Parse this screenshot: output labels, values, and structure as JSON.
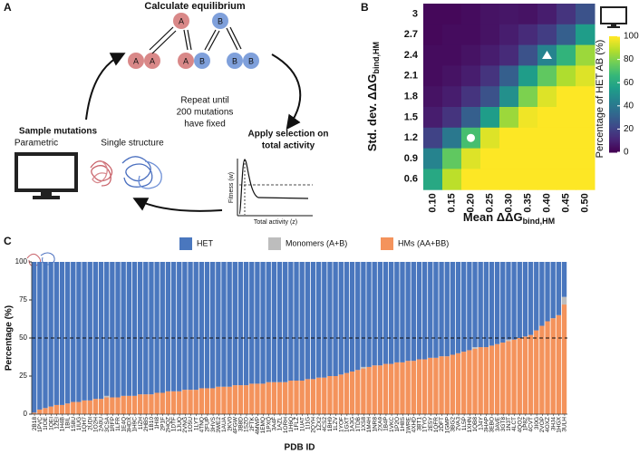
{
  "panel_labels": [
    "A",
    "B",
    "C"
  ],
  "diagram": {
    "title": "Calculate equilibrium",
    "monomer_labels": [
      "A",
      "B"
    ],
    "dimers": [
      [
        "A",
        "A"
      ],
      [
        "A",
        "B"
      ],
      [
        "B",
        "B"
      ]
    ],
    "repeat_text": [
      "Repeat until",
      "200 mutations",
      "have fixed"
    ],
    "sample_title": "Sample mutations",
    "sample_options": [
      "Parametric",
      "Single structure"
    ],
    "selection_title": [
      "Apply selection on",
      "total activity"
    ],
    "inset_y_label": "Fitness (w)",
    "inset_x_label": "Total activity (z)"
  },
  "chart_data": [
    {
      "type": "heatmap",
      "x_categories": [
        "0.10",
        "0.15",
        "0.20",
        "0.25",
        "0.30",
        "0.35",
        "0.40",
        "0.45",
        "0.50"
      ],
      "y_categories": [
        "3",
        "2.7",
        "2.4",
        "2.1",
        "1.8",
        "1.5",
        "1.2",
        "0.9",
        "0.6"
      ],
      "x_label": {
        "text": "Mean ΔΔG",
        "sub": "bind,HM"
      },
      "y_label": {
        "text": "Std. dev. ΔΔG",
        "sub": "bind,HM"
      },
      "z": [
        [
          2,
          2,
          3,
          5,
          6,
          5,
          8,
          15,
          25
        ],
        [
          2,
          3,
          3,
          5,
          8,
          12,
          18,
          30,
          55
        ],
        [
          3,
          3,
          5,
          8,
          12,
          25,
          45,
          65,
          85
        ],
        [
          3,
          5,
          8,
          15,
          30,
          55,
          75,
          88,
          95
        ],
        [
          5,
          8,
          15,
          25,
          50,
          80,
          95,
          100,
          100
        ],
        [
          8,
          15,
          30,
          55,
          85,
          98,
          100,
          100,
          100
        ],
        [
          20,
          40,
          70,
          95,
          100,
          100,
          100,
          100,
          100
        ],
        [
          45,
          75,
          95,
          100,
          100,
          100,
          100,
          100,
          100
        ],
        [
          60,
          90,
          100,
          100,
          100,
          100,
          100,
          100,
          100
        ]
      ],
      "zlim": [
        0,
        100
      ],
      "zticks": [
        0,
        20,
        40,
        60,
        80,
        100
      ],
      "colorbar_label": "Percentage of HET AB (%)",
      "colorscale": [
        "#440154",
        "#482878",
        "#3e4a89",
        "#31688e",
        "#26828e",
        "#1f9e89",
        "#35b779",
        "#6ece58",
        "#b5de2b",
        "#fde725"
      ],
      "markers": [
        {
          "x": "0.20",
          "y": "1.2",
          "shape": "circle"
        },
        {
          "x": "0.40",
          "y": "2.4",
          "shape": "triangle"
        }
      ]
    },
    {
      "type": "stacked_bar",
      "x_label": "PDB ID",
      "y_label": "Percentage (%)",
      "ylim": [
        0,
        100
      ],
      "yticks": [
        0,
        25,
        50,
        75,
        100
      ],
      "hline": 50,
      "categories": [
        "2B18",
        "1PVC",
        "1IOE",
        "1QEI",
        "1ZEI",
        "1H4B",
        "1BIL",
        "1S8U",
        "1IUG",
        "1QH7",
        "2UDI",
        "1O2H",
        "2A0U",
        "3CSA",
        "1RFP",
        "1LFR",
        "1E4Q",
        "3HDX",
        "1H9C",
        "1IZH",
        "2HB5",
        "1B10",
        "1HI8",
        "2P1F",
        "2HQZ",
        "1DTF",
        "1JUQ",
        "2VNG",
        "1O5U",
        "1LYT",
        "4TNQ",
        "2FUP",
        "3HVS",
        "3WE2",
        "1AUA",
        "2KV0",
        "4FGW",
        "3B8D",
        "1SZO",
        "2FTK",
        "4MWP",
        "1EMQ",
        "1PXQ",
        "3A4F",
        "1AZL",
        "1ORH",
        "1H6Q",
        "1FLZ",
        "1UAT",
        "1I1G",
        "2QYH",
        "1ZX2",
        "4CS2",
        "1BH9",
        "1LZV",
        "1YOF",
        "1GXT",
        "1A3G",
        "1TDB",
        "1XS8",
        "1M4H",
        "1NR8",
        "2XA9",
        "1B4P",
        "1VKC",
        "1P2O",
        "1H8S",
        "1WRE",
        "4XHD",
        "3BT1",
        "1TYO",
        "2E5Y",
        "1QFR",
        "2DFT",
        "1GMP",
        "3BG2",
        "2VA3",
        "1L5P",
        "1XHN",
        "1QB8",
        "1J4Y",
        "3HAP",
        "3EBO",
        "3AVE",
        "3GT8",
        "1N3T",
        "4LCT",
        "4QO2",
        "1P8Z",
        "4CVT",
        "3I0G",
        "2VOP",
        "4OXZ",
        "3HJ4",
        "1HGX",
        "3ULH"
      ],
      "series": [
        {
          "name": "HET",
          "color": "#4a77be",
          "values": [
            99,
            97,
            96,
            95,
            94,
            94,
            93,
            92,
            92,
            91,
            91,
            90,
            90,
            88,
            89,
            89,
            88,
            88,
            88,
            87,
            87,
            87,
            86,
            86,
            85,
            85,
            85,
            84,
            84,
            84,
            83,
            83,
            83,
            82,
            82,
            82,
            81,
            81,
            81,
            80,
            80,
            80,
            79,
            79,
            79,
            79,
            78,
            78,
            78,
            77,
            77,
            76,
            76,
            75,
            75,
            74,
            73,
            72,
            71,
            69,
            69,
            68,
            68,
            67,
            67,
            66,
            66,
            65,
            65,
            64,
            64,
            63,
            63,
            62,
            62,
            61,
            60,
            59,
            58,
            56,
            56,
            56,
            55,
            54,
            53,
            51,
            51,
            50,
            49,
            48,
            45,
            42,
            39,
            37,
            35,
            23
          ]
        },
        {
          "name": "Monomers (A+B)",
          "color": "#bdbdbd",
          "values": [
            0,
            0,
            0,
            0,
            0,
            0,
            0,
            0,
            0,
            0,
            0,
            0,
            0,
            1,
            0,
            0,
            0,
            0,
            0,
            0,
            0,
            0,
            0,
            0,
            0,
            0,
            0,
            0,
            0,
            0,
            0,
            0,
            0,
            0,
            0,
            0,
            0,
            0,
            0,
            0,
            0,
            0,
            0,
            0,
            0,
            0,
            0,
            0,
            0,
            0,
            0,
            0,
            0,
            0,
            0,
            0,
            0,
            0,
            0,
            1,
            0,
            0,
            0,
            0,
            0,
            0,
            0,
            0,
            0,
            0,
            0,
            0,
            0,
            0,
            0,
            0,
            0,
            0,
            0,
            1,
            0,
            0,
            0,
            0,
            0,
            1,
            0,
            0,
            0,
            0,
            0,
            0,
            0,
            0,
            0,
            5
          ]
        },
        {
          "name": "HMs (AA+BB)",
          "color": "#f4935c",
          "values": [
            1,
            3,
            4,
            5,
            6,
            6,
            7,
            8,
            8,
            9,
            9,
            10,
            10,
            11,
            11,
            11,
            12,
            12,
            12,
            13,
            13,
            13,
            14,
            14,
            15,
            15,
            15,
            16,
            16,
            16,
            17,
            17,
            17,
            18,
            18,
            18,
            19,
            19,
            19,
            20,
            20,
            20,
            21,
            21,
            21,
            21,
            22,
            22,
            22,
            23,
            23,
            24,
            24,
            25,
            25,
            26,
            27,
            28,
            29,
            30,
            31,
            32,
            32,
            33,
            33,
            34,
            34,
            35,
            35,
            36,
            36,
            37,
            37,
            38,
            38,
            39,
            40,
            41,
            42,
            43,
            44,
            44,
            45,
            46,
            47,
            48,
            49,
            50,
            51,
            52,
            55,
            58,
            61,
            63,
            65,
            72
          ]
        }
      ]
    }
  ]
}
